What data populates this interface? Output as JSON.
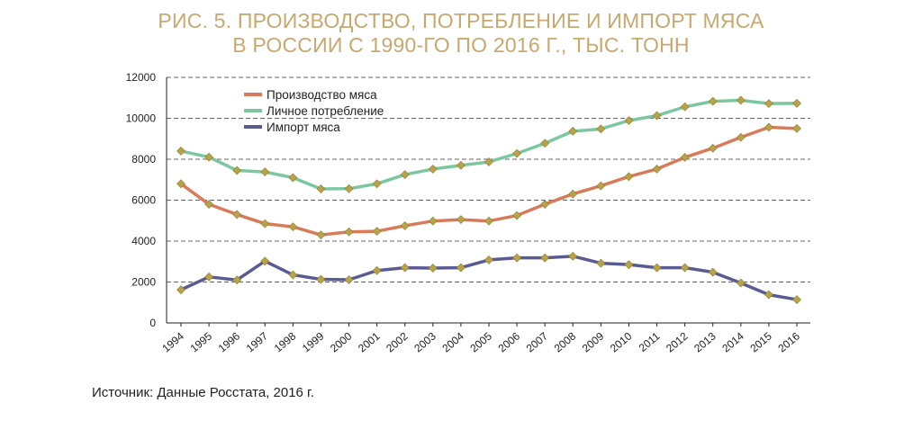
{
  "title_lines": [
    "РИС. 5. ПРОИЗВОДСТВО, ПОТРЕБЛЕНИЕ И ИМПОРТ МЯСА",
    "В РОССИИ С 1990-ГО ПО 2016 Г., ТЫС. ТОНН"
  ],
  "source": "Источник: Данные Росстата, 2016 г.",
  "chart_data": {
    "type": "line",
    "x": [
      "1994",
      "1995",
      "1996",
      "1997",
      "1998",
      "1999",
      "2000",
      "2001",
      "2002",
      "2003",
      "2004",
      "2005",
      "2006",
      "2007",
      "2008",
      "2009",
      "2010",
      "2011",
      "2012",
      "2013",
      "2014",
      "2015",
      "2016"
    ],
    "ylim": [
      0,
      12000
    ],
    "yticks": [
      0,
      2000,
      4000,
      6000,
      8000,
      10000,
      12000
    ],
    "grid": true,
    "legend_position": "top-left",
    "marker_color": "#b8a24a",
    "series": [
      {
        "name": "Производство мяса",
        "color": "#d97a5a",
        "values": [
          6800,
          5800,
          5300,
          4850,
          4700,
          4300,
          4450,
          4480,
          4750,
          4980,
          5050,
          4980,
          5250,
          5800,
          6300,
          6700,
          7150,
          7520,
          8090,
          8540,
          9070,
          9560,
          9500
        ]
      },
      {
        "name": "Личное потребление",
        "color": "#7cc7a0",
        "values": [
          8400,
          8100,
          7450,
          7380,
          7100,
          6550,
          6560,
          6800,
          7250,
          7520,
          7700,
          7870,
          8280,
          8780,
          9370,
          9480,
          9890,
          10130,
          10560,
          10830,
          10880,
          10720,
          10730
        ]
      },
      {
        "name": "Импорт мяса",
        "color": "#5b5b94",
        "values": [
          1620,
          2250,
          2100,
          3020,
          2350,
          2130,
          2110,
          2560,
          2700,
          2680,
          2700,
          3080,
          3180,
          3180,
          3260,
          2920,
          2850,
          2700,
          2700,
          2480,
          1950,
          1380,
          1140
        ]
      }
    ]
  }
}
